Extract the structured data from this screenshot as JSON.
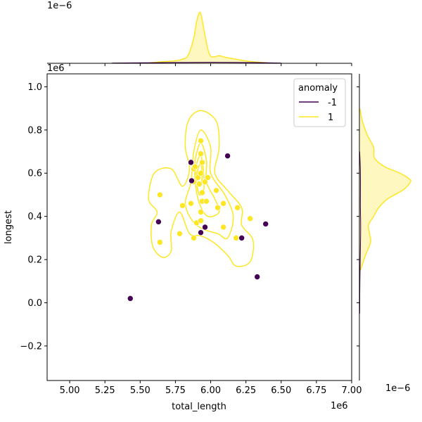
{
  "chart_data": {
    "type": "scatter",
    "title": "",
    "xlabel": "total_length",
    "ylabel": "longest",
    "x_offset_text": "1e6",
    "y_offset_text": "1e6",
    "top_marginal_offset_text": "1e−6",
    "right_marginal_offset_text": "1e−6",
    "xlim": [
      4.84,
      7.0
    ],
    "ylim": [
      -0.36,
      1.06
    ],
    "x_ticks": [
      5.0,
      5.25,
      5.5,
      5.75,
      6.0,
      6.25,
      6.5,
      6.75,
      7.0
    ],
    "x_tick_labels": [
      "5.00",
      "5.25",
      "5.50",
      "5.75",
      "6.00",
      "6.25",
      "6.50",
      "6.75",
      "7.00"
    ],
    "y_ticks": [
      -0.2,
      0.0,
      0.2,
      0.4,
      0.6,
      0.8,
      1.0
    ],
    "y_tick_labels": [
      "−0.2",
      "0.0",
      "0.2",
      "0.4",
      "0.6",
      "0.8",
      "1.0"
    ],
    "legend": {
      "title": "anomaly",
      "placement": "upper-right",
      "entries": [
        {
          "label": "-1",
          "color": "#440154"
        },
        {
          "label": "1",
          "color": "#fde725"
        }
      ]
    },
    "colors": {
      "anomaly": "#440154",
      "normal": "#fde725",
      "normal_fill": "#fef7c0",
      "axis": "#000000"
    },
    "series": [
      {
        "name": "-1",
        "color": "#440154",
        "points": [
          [
            5.43,
            0.02
          ],
          [
            5.63,
            0.375
          ],
          [
            5.86,
            0.65
          ],
          [
            5.865,
            0.565
          ],
          [
            5.93,
            0.325
          ],
          [
            5.96,
            0.35
          ],
          [
            6.12,
            0.68
          ],
          [
            6.22,
            0.3
          ],
          [
            6.33,
            0.12
          ],
          [
            6.39,
            0.365
          ]
        ]
      },
      {
        "name": "1",
        "color": "#fde725",
        "points": [
          [
            5.64,
            0.5
          ],
          [
            5.64,
            0.28
          ],
          [
            5.78,
            0.32
          ],
          [
            5.8,
            0.45
          ],
          [
            5.86,
            0.46
          ],
          [
            5.88,
            0.3
          ],
          [
            5.88,
            0.56
          ],
          [
            5.88,
            0.62
          ],
          [
            5.89,
            0.63
          ],
          [
            5.9,
            0.37
          ],
          [
            5.91,
            0.58
          ],
          [
            5.92,
            0.55
          ],
          [
            5.93,
            0.42
          ],
          [
            5.93,
            0.38
          ],
          [
            5.93,
            0.6
          ],
          [
            5.93,
            0.69
          ],
          [
            5.93,
            0.75
          ],
          [
            5.94,
            0.51
          ],
          [
            5.94,
            0.47
          ],
          [
            5.94,
            0.65
          ],
          [
            5.96,
            0.56
          ],
          [
            5.97,
            0.47
          ],
          [
            5.98,
            0.58
          ],
          [
            6.04,
            0.52
          ],
          [
            6.05,
            0.44
          ],
          [
            6.09,
            0.46
          ],
          [
            6.09,
            0.35
          ],
          [
            6.18,
            0.3
          ],
          [
            6.19,
            0.44
          ],
          [
            6.28,
            0.39
          ]
        ]
      }
    ],
    "kde_contours_normal": [
      [
        [
          5.93,
          0.89
        ],
        [
          6.04,
          0.84
        ],
        [
          6.06,
          0.72
        ],
        [
          6.03,
          0.6
        ],
        [
          6.12,
          0.52
        ],
        [
          6.22,
          0.44
        ],
        [
          6.22,
          0.36
        ],
        [
          6.3,
          0.29
        ],
        [
          6.28,
          0.19
        ],
        [
          6.18,
          0.17
        ],
        [
          6.12,
          0.22
        ],
        [
          6.02,
          0.28
        ],
        [
          5.93,
          0.31
        ],
        [
          5.85,
          0.32
        ],
        [
          5.78,
          0.42
        ],
        [
          5.72,
          0.33
        ],
        [
          5.72,
          0.24
        ],
        [
          5.66,
          0.21
        ],
        [
          5.59,
          0.26
        ],
        [
          5.58,
          0.36
        ],
        [
          5.62,
          0.42
        ],
        [
          5.56,
          0.48
        ],
        [
          5.6,
          0.6
        ],
        [
          5.72,
          0.62
        ],
        [
          5.8,
          0.54
        ],
        [
          5.85,
          0.62
        ],
        [
          5.82,
          0.72
        ],
        [
          5.84,
          0.84
        ]
      ],
      [
        [
          5.93,
          0.8
        ],
        [
          6.0,
          0.72
        ],
        [
          6.0,
          0.6
        ],
        [
          6.1,
          0.5
        ],
        [
          6.16,
          0.4
        ],
        [
          6.12,
          0.3
        ],
        [
          6.05,
          0.32
        ],
        [
          5.95,
          0.34
        ],
        [
          5.87,
          0.38
        ],
        [
          5.82,
          0.46
        ],
        [
          5.86,
          0.56
        ],
        [
          5.88,
          0.7
        ]
      ],
      [
        [
          5.93,
          0.74
        ],
        [
          5.97,
          0.66
        ],
        [
          5.97,
          0.56
        ],
        [
          6.03,
          0.48
        ],
        [
          6.06,
          0.42
        ],
        [
          5.98,
          0.4
        ],
        [
          5.92,
          0.46
        ],
        [
          5.89,
          0.56
        ],
        [
          5.89,
          0.66
        ]
      ],
      [
        [
          5.93,
          0.68
        ],
        [
          5.95,
          0.6
        ],
        [
          5.95,
          0.52
        ],
        [
          5.92,
          0.5
        ],
        [
          5.9,
          0.56
        ],
        [
          5.9,
          0.64
        ]
      ],
      [
        [
          5.93,
          0.64
        ],
        [
          5.94,
          0.59
        ],
        [
          5.93,
          0.55
        ],
        [
          5.91,
          0.57
        ],
        [
          5.91,
          0.62
        ]
      ]
    ],
    "marginal_x_normal": {
      "x": [
        5.57,
        5.65,
        5.7,
        5.75,
        5.8,
        5.84,
        5.88,
        5.9,
        5.92,
        5.93,
        5.94,
        5.96,
        5.98,
        6.0,
        6.03,
        6.06,
        6.1,
        6.14,
        6.18,
        6.22,
        6.3,
        6.4
      ],
      "density": [
        0.01,
        0.03,
        0.04,
        0.05,
        0.08,
        0.16,
        0.5,
        0.82,
        1.0,
        0.98,
        0.85,
        0.55,
        0.28,
        0.14,
        0.13,
        0.15,
        0.12,
        0.1,
        0.08,
        0.06,
        0.03,
        0.01
      ]
    },
    "marginal_x_anomaly": {
      "x": [
        5.3,
        5.5,
        5.7,
        5.9,
        6.1,
        6.3,
        6.5
      ],
      "density": [
        0.005,
        0.01,
        0.015,
        0.02,
        0.02,
        0.015,
        0.005
      ]
    },
    "marginal_y_normal": {
      "y": [
        0.15,
        0.22,
        0.28,
        0.32,
        0.36,
        0.4,
        0.44,
        0.48,
        0.52,
        0.55,
        0.57,
        0.6,
        0.63,
        0.67,
        0.72,
        0.78,
        0.84,
        0.9
      ],
      "density": [
        0.02,
        0.12,
        0.22,
        0.2,
        0.18,
        0.28,
        0.38,
        0.55,
        0.85,
        0.98,
        1.0,
        0.8,
        0.5,
        0.3,
        0.28,
        0.15,
        0.06,
        0.01
      ]
    },
    "marginal_y_anomaly": {
      "y": [
        -0.05,
        0.1,
        0.25,
        0.35,
        0.45,
        0.6,
        0.7
      ],
      "density": [
        0.005,
        0.01,
        0.02,
        0.025,
        0.02,
        0.02,
        0.005
      ]
    }
  }
}
